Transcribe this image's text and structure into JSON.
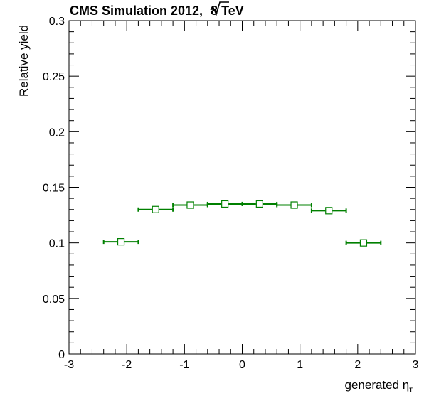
{
  "chart_data": {
    "type": "scatter",
    "title": "CMS Simulation 2012, √8 TeV",
    "title_parts": {
      "prefix": "CMS Simulation 2012, ",
      "root": "8",
      "suffix": " TeV"
    },
    "xlabel": "generated ητ",
    "xlabel_parts": {
      "main": "generated η",
      "subscript": "τ"
    },
    "ylabel": "Relative yield",
    "xlim": [
      -3,
      3
    ],
    "ylim": [
      0,
      0.3
    ],
    "x_ticks": [
      -3,
      -2,
      -1,
      0,
      1,
      2,
      3
    ],
    "x_tick_labels": [
      "-3",
      "-2",
      "-1",
      "0",
      "1",
      "2",
      "3"
    ],
    "y_ticks": [
      0,
      0.05,
      0.1,
      0.15,
      0.2,
      0.25,
      0.3
    ],
    "y_tick_labels": [
      "0",
      "0.05",
      "0.1",
      "0.15",
      "0.2",
      "0.25",
      "0.3"
    ],
    "grid": false,
    "series": [
      {
        "color": "#008000",
        "marker": "open-square",
        "points": [
          {
            "x": -2.1,
            "x_low": -2.4,
            "x_high": -1.8,
            "y": 0.101
          },
          {
            "x": -1.5,
            "x_low": -1.8,
            "x_high": -1.2,
            "y": 0.13
          },
          {
            "x": -0.9,
            "x_low": -1.2,
            "x_high": -0.6,
            "y": 0.134
          },
          {
            "x": -0.3,
            "x_low": -0.6,
            "x_high": 0.0,
            "y": 0.135
          },
          {
            "x": 0.3,
            "x_low": 0.0,
            "x_high": 0.6,
            "y": 0.135
          },
          {
            "x": 0.9,
            "x_low": 0.6,
            "x_high": 1.2,
            "y": 0.134
          },
          {
            "x": 1.5,
            "x_low": 1.2,
            "x_high": 1.8,
            "y": 0.129
          },
          {
            "x": 2.1,
            "x_low": 1.8,
            "x_high": 2.4,
            "y": 0.1
          }
        ]
      }
    ]
  }
}
